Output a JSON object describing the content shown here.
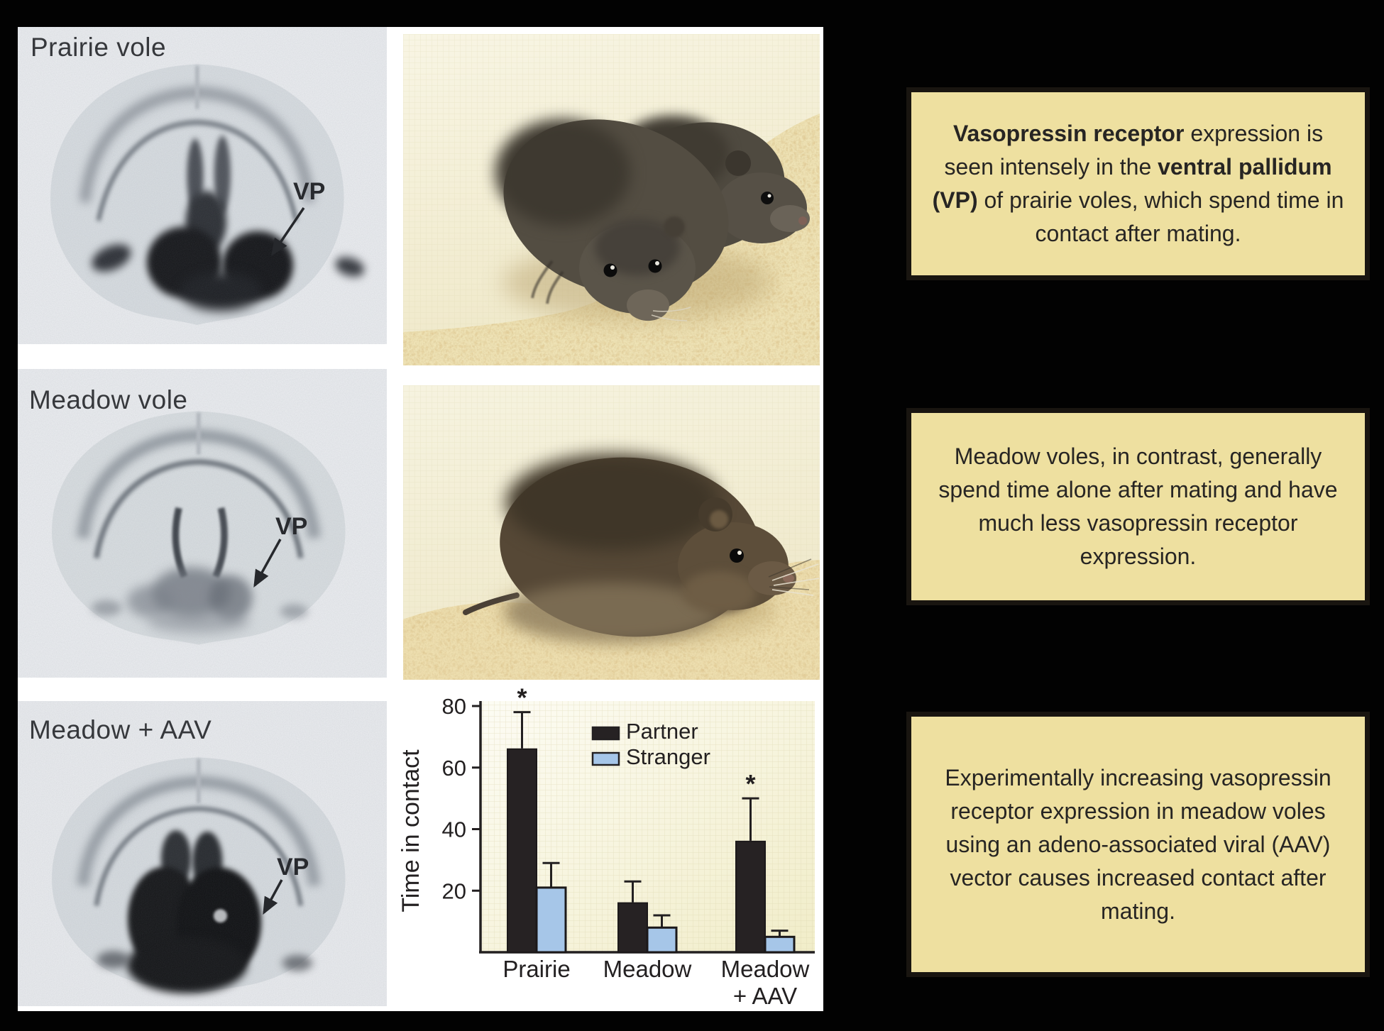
{
  "colors": {
    "background": "#000000",
    "figure_panel_bg": "#ffffff",
    "callout_bg": "#eee0a0",
    "callout_border": "#191510",
    "callout_text": "#272523",
    "partner_bar": "#262223",
    "stranger_bar": "#a6c6e8",
    "chart_plot_bg": "#f4f0d2"
  },
  "figure": {
    "panels": [
      {
        "label": "Prairie vole",
        "vp_label": "VP"
      },
      {
        "label": "Meadow vole",
        "vp_label": "VP"
      },
      {
        "label": "Meadow + AAV",
        "vp_label": "VP"
      }
    ]
  },
  "chart_data": {
    "type": "bar",
    "title": "",
    "xlabel": "",
    "ylabel": "Time in contact",
    "ylim": [
      0,
      80
    ],
    "yticks": [
      20,
      40,
      60,
      80
    ],
    "grid": true,
    "legend_position": "top-right",
    "significance_marker": "*",
    "categories": [
      "Prairie",
      "Meadow",
      "Meadow\n+ AAV"
    ],
    "series": [
      {
        "name": "Partner",
        "color": "#262223",
        "values": [
          66,
          16,
          36
        ],
        "errors": [
          12,
          7,
          14
        ],
        "significant": [
          true,
          false,
          true
        ]
      },
      {
        "name": "Stranger",
        "color": "#a6c6e8",
        "values": [
          21,
          8,
          5
        ],
        "errors": [
          8,
          4,
          2
        ],
        "significant": [
          false,
          false,
          false
        ]
      }
    ]
  },
  "callouts": [
    {
      "segments": [
        {
          "text": "Vasopressin receptor",
          "bold": true
        },
        {
          "text": " expression is seen intensely in the ",
          "bold": false
        },
        {
          "text": "ventral pallidum (VP)",
          "bold": true
        },
        {
          "text": " of prairie voles, which spend time in contact after mating.",
          "bold": false
        }
      ]
    },
    {
      "segments": [
        {
          "text": "Meadow voles, in contrast, generally spend time alone after mating and have much less vasopressin receptor expression.",
          "bold": false
        }
      ]
    },
    {
      "segments": [
        {
          "text": "Experimentally increasing vasopressin receptor expression in meadow voles using an adeno-associated viral (AAV) vector causes increased contact after mating.",
          "bold": false
        }
      ]
    }
  ]
}
